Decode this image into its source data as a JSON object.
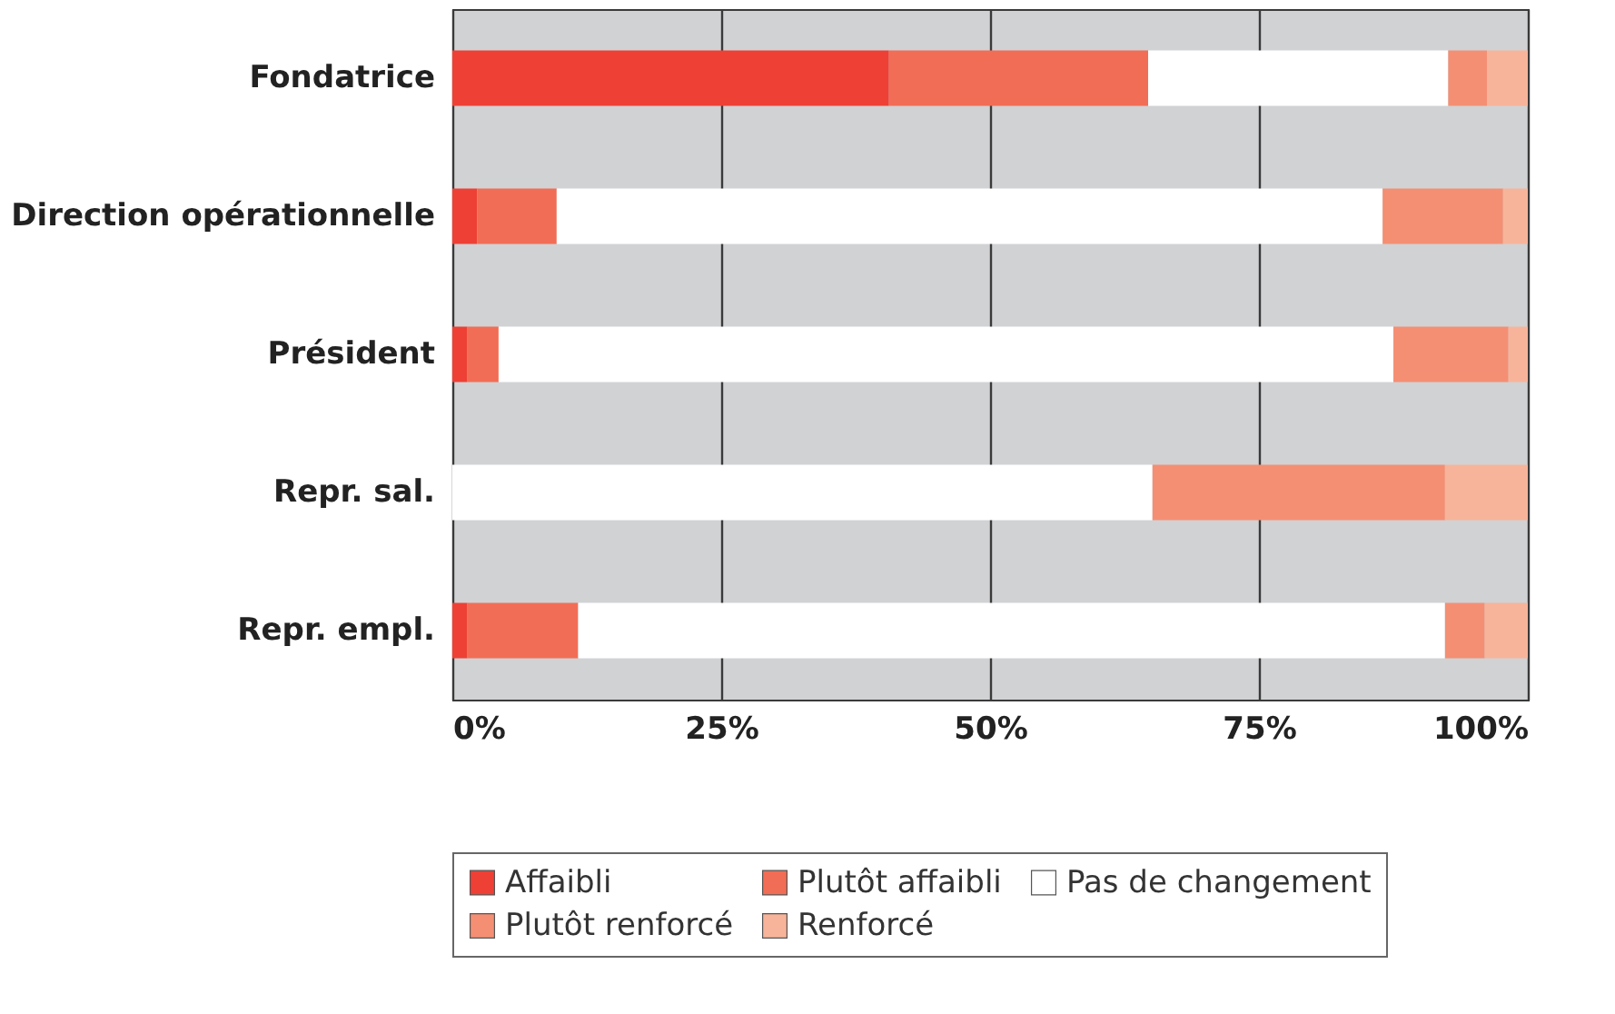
{
  "chart_data": {
    "type": "bar",
    "orientation": "horizontal",
    "stacked": true,
    "categories": [
      "Fondatrice",
      "Direction opérationnelle",
      "Président",
      "Repr. sal.",
      "Repr. empl."
    ],
    "series": [
      {
        "name": "Affaibli",
        "color": "#ee4035",
        "values": [
          40.6,
          2.3,
          1.4,
          0,
          1.4
        ]
      },
      {
        "name": "Plutôt affaibli",
        "color": "#f26d55",
        "values": [
          24.1,
          7.4,
          2.9,
          0,
          10.3
        ]
      },
      {
        "name": "Pas de changement",
        "color": "#ffffff",
        "values": [
          27.9,
          76.8,
          83.2,
          65.1,
          80.6
        ]
      },
      {
        "name": "Plutôt renforcé",
        "color": "#f48f74",
        "values": [
          3.6,
          11.2,
          10.7,
          27.2,
          3.7
        ]
      },
      {
        "name": "Renforcé",
        "color": "#f7b49a",
        "values": [
          3.8,
          2.3,
          1.8,
          7.7,
          4.0
        ]
      }
    ],
    "xlim": [
      0,
      100
    ],
    "xticks": [
      {
        "value": 0,
        "label": "0%"
      },
      {
        "value": 25,
        "label": "25%"
      },
      {
        "value": 50,
        "label": "50%"
      },
      {
        "value": 75,
        "label": "75%"
      },
      {
        "value": 100,
        "label": "100%"
      }
    ],
    "grid": "x",
    "legend": "bottom"
  }
}
